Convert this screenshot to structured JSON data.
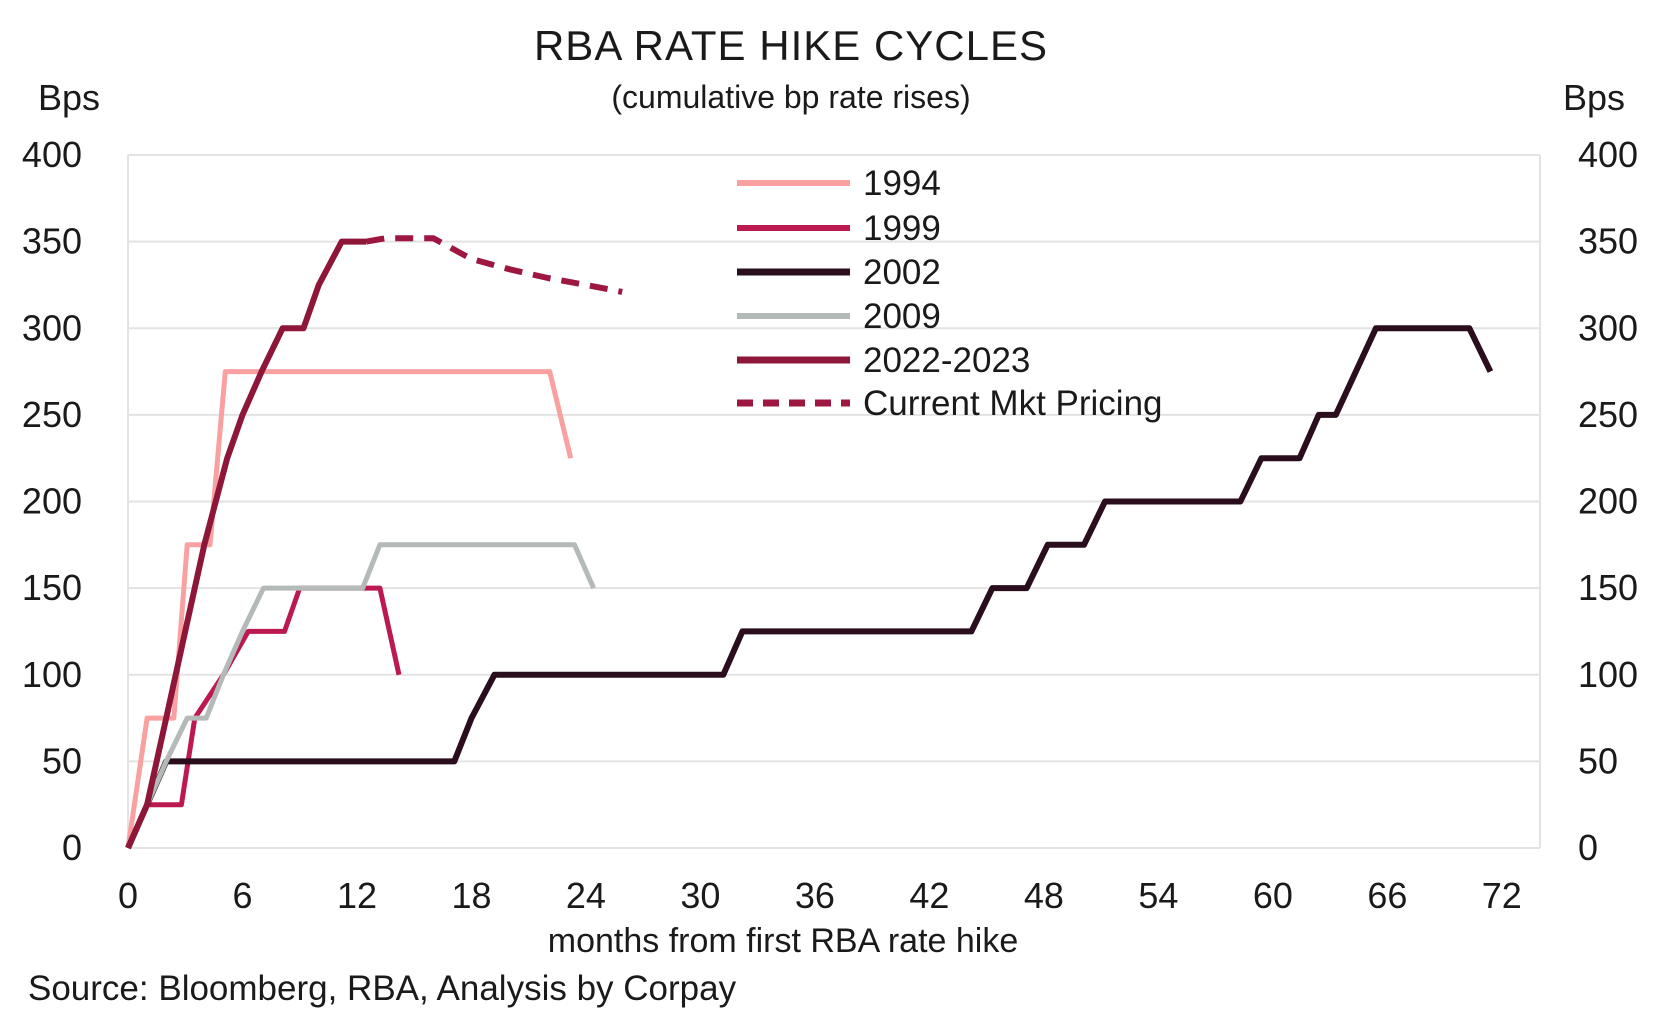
{
  "title": "RBA RATE HIKE CYCLES",
  "subtitle": "(cumulative bp rate rises)",
  "title_color": "#A2244E",
  "text_color": "#1A1A1A",
  "grid_color": "#E3E3E3",
  "axes": {
    "y_left_label": "Bps",
    "y_right_label": "Bps",
    "x_label": "months from first RBA rate hike"
  },
  "source": "Source: Bloomberg, RBA, Analysis by Corpay",
  "chart_data": {
    "type": "line",
    "title": "RBA RATE HIKE CYCLES",
    "subtitle": "(cumulative bp rate rises)",
    "xlabel": "months from first RBA rate hike",
    "ylabel": "Bps",
    "xlim": [
      0,
      74
    ],
    "ylim": [
      0,
      400
    ],
    "x_ticks": [
      0,
      6,
      12,
      18,
      24,
      30,
      36,
      42,
      48,
      54,
      60,
      66,
      72
    ],
    "y_ticks": [
      0,
      50,
      100,
      150,
      200,
      250,
      300,
      350,
      400
    ],
    "grid": "horizontal",
    "legend_position": "upper-center",
    "series": [
      {
        "name": "1994",
        "color": "#F9A0A0",
        "style": "solid",
        "width": 5,
        "points": [
          [
            0,
            0
          ],
          [
            1,
            75
          ],
          [
            2.4,
            75
          ],
          [
            3.1,
            175
          ],
          [
            4.3,
            175
          ],
          [
            5.1,
            275
          ],
          [
            22.1,
            275
          ],
          [
            23.2,
            225
          ]
        ]
      },
      {
        "name": "1999",
        "color": "#BB1950",
        "style": "solid",
        "width": 5,
        "points": [
          [
            0,
            0
          ],
          [
            1,
            25
          ],
          [
            2.8,
            25
          ],
          [
            3.5,
            75
          ],
          [
            5,
            100
          ],
          [
            6.3,
            125
          ],
          [
            8.2,
            125
          ],
          [
            9,
            150
          ],
          [
            13.2,
            150
          ],
          [
            14.2,
            100
          ]
        ]
      },
      {
        "name": "2002",
        "color": "#2A0E1E",
        "style": "solid",
        "width": 6,
        "points": [
          [
            0,
            0
          ],
          [
            1,
            25
          ],
          [
            2,
            50
          ],
          [
            17.1,
            50
          ],
          [
            18,
            75
          ],
          [
            19.2,
            100
          ],
          [
            31.2,
            100
          ],
          [
            32.2,
            125
          ],
          [
            44.2,
            125
          ],
          [
            45.3,
            150
          ],
          [
            47.1,
            150
          ],
          [
            48.2,
            175
          ],
          [
            50.1,
            175
          ],
          [
            51.2,
            200
          ],
          [
            58.3,
            200
          ],
          [
            59.4,
            225
          ],
          [
            61.4,
            225
          ],
          [
            62.4,
            250
          ],
          [
            63.3,
            250
          ],
          [
            65.4,
            300
          ],
          [
            70.3,
            300
          ],
          [
            71.4,
            275
          ]
        ]
      },
      {
        "name": "2009",
        "color": "#B3BAB7",
        "style": "solid",
        "width": 5,
        "points": [
          [
            0,
            0
          ],
          [
            1,
            25
          ],
          [
            2,
            50
          ],
          [
            3.1,
            75
          ],
          [
            4.1,
            75
          ],
          [
            5,
            100
          ],
          [
            6,
            125
          ],
          [
            7.1,
            150
          ],
          [
            12.3,
            150
          ],
          [
            13.2,
            175
          ],
          [
            23.4,
            175
          ],
          [
            24.4,
            150
          ]
        ]
      },
      {
        "name": "2022-2023",
        "color": "#8E1638",
        "style": "solid",
        "width": 6,
        "points": [
          [
            0,
            0
          ],
          [
            1,
            25
          ],
          [
            2,
            75
          ],
          [
            3,
            125
          ],
          [
            4,
            175
          ],
          [
            5.2,
            225
          ],
          [
            6,
            250
          ],
          [
            7,
            275
          ],
          [
            8.1,
            300
          ],
          [
            9.2,
            300
          ],
          [
            10,
            325
          ],
          [
            11.2,
            350
          ],
          [
            12.5,
            350
          ]
        ]
      },
      {
        "name": "Current Mkt Pricing",
        "color": "#9E1741",
        "style": "dashed",
        "width": 6,
        "points": [
          [
            12.5,
            350
          ],
          [
            13.5,
            352
          ],
          [
            16,
            352
          ],
          [
            18,
            340
          ],
          [
            20,
            334
          ],
          [
            22,
            329
          ],
          [
            24,
            325
          ],
          [
            25.9,
            321
          ]
        ]
      }
    ]
  }
}
